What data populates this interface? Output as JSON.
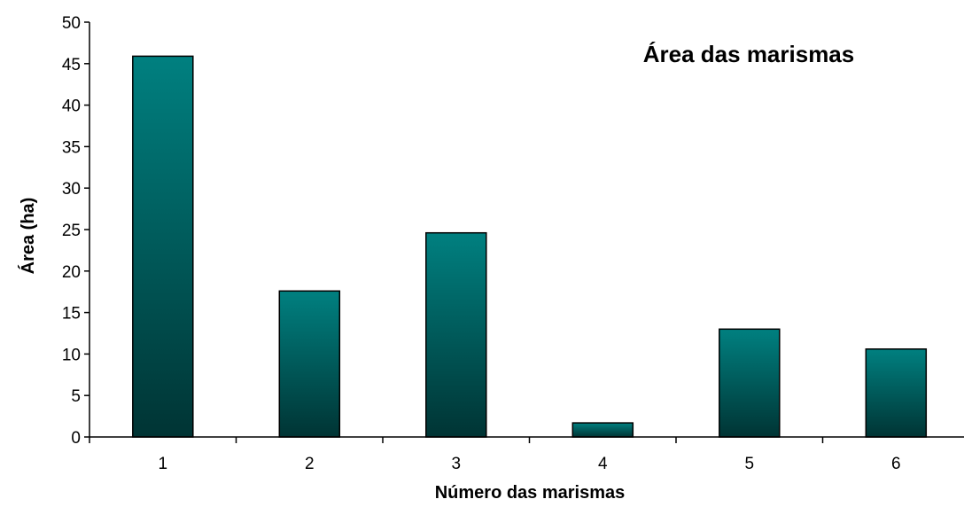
{
  "chart_data": {
    "type": "bar",
    "title": "Área das marismas",
    "xlabel": "Número das marismas",
    "ylabel": "Área (ha)",
    "categories": [
      "1",
      "2",
      "3",
      "4",
      "5",
      "6"
    ],
    "values": [
      45.9,
      17.6,
      24.6,
      1.7,
      13.0,
      10.6
    ],
    "ylim": [
      0,
      50
    ],
    "yticks": [
      "0",
      "5",
      "10",
      "15",
      "20",
      "25",
      "30",
      "35",
      "40",
      "45",
      "50"
    ],
    "grid": false,
    "legend": "none",
    "colors": {
      "bar_top": "#008080",
      "bar_bottom": "#003434",
      "axis": "#000000"
    }
  }
}
